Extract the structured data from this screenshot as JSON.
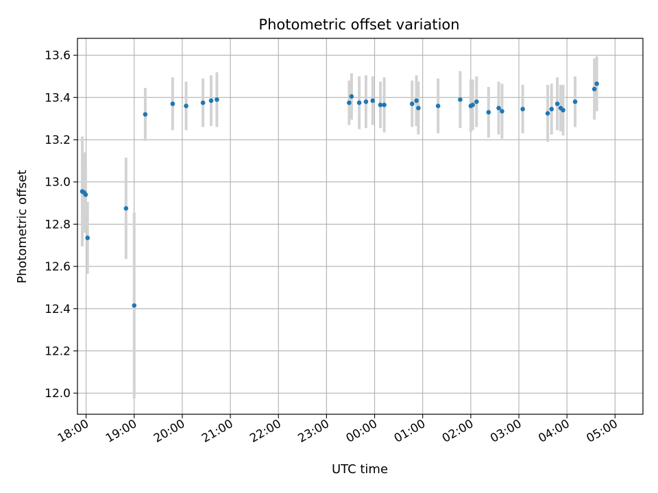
{
  "chart_data": {
    "type": "scatter",
    "title": "Photometric offset variation",
    "xlabel": "UTC time",
    "ylabel": "Photometric offset",
    "grid": true,
    "x_unit": "UTC time, hours after 18:00",
    "xlim": [
      -0.18,
      11.58
    ],
    "ylim": [
      11.9,
      13.68
    ],
    "x_ticks": [
      {
        "value": 0,
        "label": "18:00"
      },
      {
        "value": 1,
        "label": "19:00"
      },
      {
        "value": 2,
        "label": "20:00"
      },
      {
        "value": 3,
        "label": "21:00"
      },
      {
        "value": 4,
        "label": "22:00"
      },
      {
        "value": 5,
        "label": "23:00"
      },
      {
        "value": 6,
        "label": "00:00"
      },
      {
        "value": 7,
        "label": "01:00"
      },
      {
        "value": 8,
        "label": "02:00"
      },
      {
        "value": 9,
        "label": "03:00"
      },
      {
        "value": 10,
        "label": "04:00"
      },
      {
        "value": 11,
        "label": "05:00"
      }
    ],
    "y_ticks": [
      "12.0",
      "12.2",
      "12.4",
      "12.6",
      "12.8",
      "13.0",
      "13.2",
      "13.4",
      "13.6"
    ],
    "point_color": "#1f77b4",
    "errorbar_color": "#d3d3d3",
    "points": [
      {
        "x": -0.08,
        "y": 12.955,
        "err": 0.26
      },
      {
        "x": -0.04,
        "y": 12.95,
        "err": 0.19
      },
      {
        "x": -0.01,
        "y": 12.94,
        "err": 0.15
      },
      {
        "x": 0.03,
        "y": 12.735,
        "err": 0.17
      },
      {
        "x": 0.83,
        "y": 12.875,
        "err": 0.24
      },
      {
        "x": 1.0,
        "y": 12.415,
        "err": 0.44
      },
      {
        "x": 1.23,
        "y": 13.32,
        "err": 0.125
      },
      {
        "x": 1.8,
        "y": 13.37,
        "err": 0.125
      },
      {
        "x": 2.08,
        "y": 13.36,
        "err": 0.115
      },
      {
        "x": 2.43,
        "y": 13.375,
        "err": 0.115
      },
      {
        "x": 2.6,
        "y": 13.385,
        "err": 0.12
      },
      {
        "x": 2.72,
        "y": 13.39,
        "err": 0.13
      },
      {
        "x": 5.47,
        "y": 13.375,
        "err": 0.105
      },
      {
        "x": 5.52,
        "y": 13.405,
        "err": 0.11
      },
      {
        "x": 5.68,
        "y": 13.375,
        "err": 0.125
      },
      {
        "x": 5.82,
        "y": 13.38,
        "err": 0.125
      },
      {
        "x": 5.96,
        "y": 13.385,
        "err": 0.115
      },
      {
        "x": 6.12,
        "y": 13.365,
        "err": 0.11
      },
      {
        "x": 6.2,
        "y": 13.365,
        "err": 0.13
      },
      {
        "x": 6.78,
        "y": 13.37,
        "err": 0.11
      },
      {
        "x": 6.87,
        "y": 13.385,
        "err": 0.12
      },
      {
        "x": 6.91,
        "y": 13.35,
        "err": 0.125
      },
      {
        "x": 7.32,
        "y": 13.36,
        "err": 0.13
      },
      {
        "x": 7.78,
        "y": 13.39,
        "err": 0.135
      },
      {
        "x": 8.0,
        "y": 13.36,
        "err": 0.125
      },
      {
        "x": 8.04,
        "y": 13.365,
        "err": 0.12
      },
      {
        "x": 8.12,
        "y": 13.38,
        "err": 0.12
      },
      {
        "x": 8.37,
        "y": 13.33,
        "err": 0.12
      },
      {
        "x": 8.58,
        "y": 13.35,
        "err": 0.125
      },
      {
        "x": 8.65,
        "y": 13.335,
        "err": 0.13
      },
      {
        "x": 9.08,
        "y": 13.345,
        "err": 0.115
      },
      {
        "x": 9.6,
        "y": 13.325,
        "err": 0.135
      },
      {
        "x": 9.68,
        "y": 13.345,
        "err": 0.12
      },
      {
        "x": 9.8,
        "y": 13.37,
        "err": 0.125
      },
      {
        "x": 9.87,
        "y": 13.35,
        "err": 0.11
      },
      {
        "x": 9.92,
        "y": 13.34,
        "err": 0.12
      },
      {
        "x": 10.17,
        "y": 13.38,
        "err": 0.12
      },
      {
        "x": 10.57,
        "y": 13.44,
        "err": 0.145
      },
      {
        "x": 10.62,
        "y": 13.465,
        "err": 0.13
      }
    ]
  }
}
